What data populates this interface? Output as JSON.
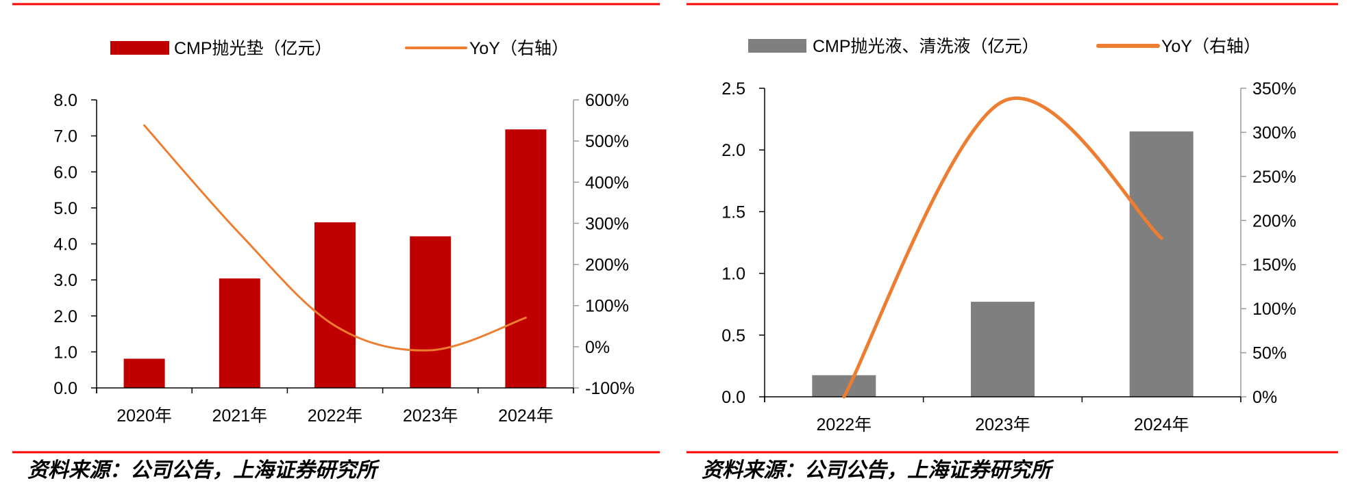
{
  "chart_data": [
    {
      "type": "bar+line",
      "categories": [
        "2020年",
        "2021年",
        "2022年",
        "2023年",
        "2024年"
      ],
      "series": [
        {
          "name": "CMP抛光垫（亿元）",
          "axis": "left",
          "kind": "bar",
          "color": "#C00000",
          "values": [
            0.81,
            3.04,
            4.6,
            4.21,
            7.18
          ]
        },
        {
          "name": "YoY（右轴）",
          "axis": "right",
          "kind": "line",
          "color": "#ED7D31",
          "values": [
            538,
            275,
            51,
            -8.5,
            70.5
          ]
        }
      ],
      "left_axis": {
        "ylim": [
          0,
          8
        ],
        "ticks": [
          "0.0",
          "1.0",
          "2.0",
          "3.0",
          "4.0",
          "5.0",
          "6.0",
          "7.0",
          "8.0"
        ],
        "tick_values": [
          0,
          1,
          2,
          3,
          4,
          5,
          6,
          7,
          8
        ]
      },
      "right_axis": {
        "ylim": [
          -100,
          600
        ],
        "ticks": [
          "-100%",
          "0%",
          "100%",
          "200%",
          "300%",
          "400%",
          "500%",
          "600%"
        ],
        "tick_values": [
          -100,
          0,
          100,
          200,
          300,
          400,
          500,
          600
        ]
      },
      "legend_placement": "top",
      "source": "资料来源：公司公告，上海证券研究所",
      "rule_color": "#FF0000"
    },
    {
      "type": "bar+line",
      "categories": [
        "2022年",
        "2023年",
        "2024年"
      ],
      "series": [
        {
          "name": "CMP抛光液、清洗液（亿元）",
          "axis": "left",
          "kind": "bar",
          "color": "#7F7F7F",
          "values": [
            0.175,
            0.77,
            2.15
          ]
        },
        {
          "name": "YoY（右轴）",
          "axis": "right",
          "kind": "line",
          "color": "#ED7D31",
          "values": [
            0,
            335,
            180
          ]
        }
      ],
      "left_axis": {
        "ylim": [
          0,
          2.5
        ],
        "ticks": [
          "0.0",
          "0.5",
          "1.0",
          "1.5",
          "2.0",
          "2.5"
        ],
        "tick_values": [
          0,
          0.5,
          1,
          1.5,
          2,
          2.5
        ]
      },
      "right_axis": {
        "ylim": [
          0,
          350
        ],
        "ticks": [
          "0%",
          "50%",
          "100%",
          "150%",
          "200%",
          "250%",
          "300%",
          "350%"
        ],
        "tick_values": [
          0,
          50,
          100,
          150,
          200,
          250,
          300,
          350
        ]
      },
      "legend_placement": "top",
      "source": "资料来源：公司公告，上海证券研究所",
      "rule_color": "#FF0000"
    }
  ]
}
